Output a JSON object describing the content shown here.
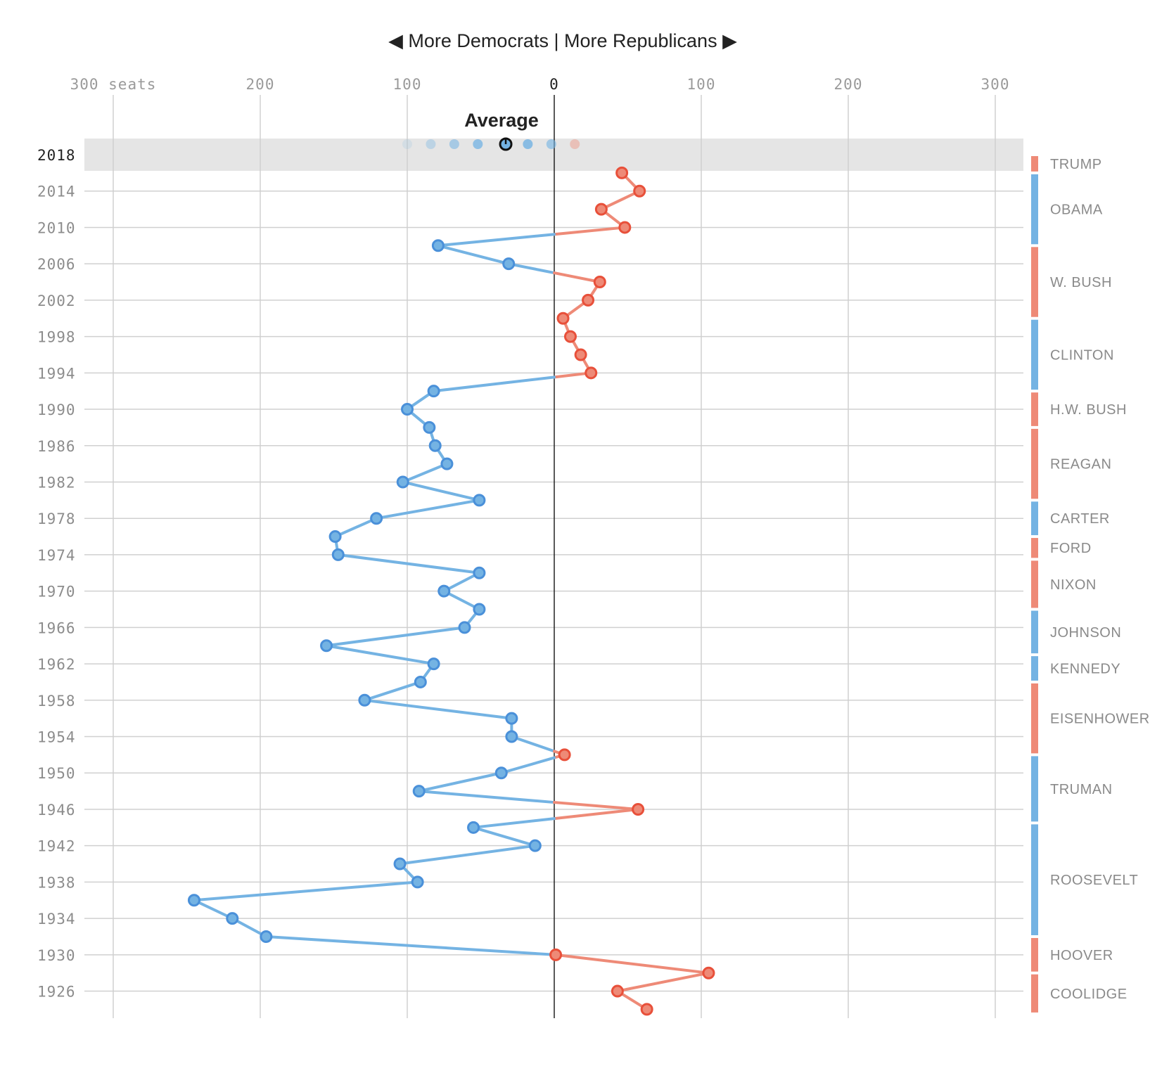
{
  "chart_data": {
    "type": "line",
    "header": "◀ More Democrats | More Republicans ▶",
    "x_axis": {
      "range": [
        -300,
        300
      ],
      "ticks": [
        {
          "value": -300,
          "label": "300 seats"
        },
        {
          "value": -200,
          "label": "200"
        },
        {
          "value": -100,
          "label": "100"
        },
        {
          "value": 0,
          "label": "0"
        },
        {
          "value": 100,
          "label": "100"
        },
        {
          "value": 200,
          "label": "200"
        },
        {
          "value": 300,
          "label": "300"
        }
      ]
    },
    "y_axis": {
      "labels": [
        "2018",
        "2014",
        "2010",
        "2006",
        "2002",
        "1998",
        "1994",
        "1990",
        "1986",
        "1982",
        "1978",
        "1974",
        "1970",
        "1966",
        "1962",
        "1958",
        "1954",
        "1950",
        "1946",
        "1942",
        "1938",
        "1934",
        "1930",
        "1926"
      ]
    },
    "highlight_year": "2018",
    "average_label": "Average",
    "average_value": -33,
    "forecast_dots": [
      -100,
      -84,
      -68,
      -52,
      -33,
      -18,
      -2,
      14
    ],
    "colors": {
      "democrat": "#74b3e3",
      "democrat_dot": "#4a90d9",
      "republican": "#ee8a77",
      "republican_dot": "#e8503a",
      "band": "#e5e5e5"
    },
    "series": [
      {
        "year": 2016,
        "value": 46
      },
      {
        "year": 2014,
        "value": 58
      },
      {
        "year": 2012,
        "value": 32
      },
      {
        "year": 2010,
        "value": 48
      },
      {
        "year": 2008,
        "value": -79
      },
      {
        "year": 2006,
        "value": -31
      },
      {
        "year": 2004,
        "value": 31
      },
      {
        "year": 2002,
        "value": 23
      },
      {
        "year": 2000,
        "value": 6
      },
      {
        "year": 1998,
        "value": 11
      },
      {
        "year": 1996,
        "value": 18
      },
      {
        "year": 1994,
        "value": 25
      },
      {
        "year": 1992,
        "value": -82
      },
      {
        "year": 1990,
        "value": -100
      },
      {
        "year": 1988,
        "value": -85
      },
      {
        "year": 1986,
        "value": -81
      },
      {
        "year": 1984,
        "value": -73
      },
      {
        "year": 1982,
        "value": -103
      },
      {
        "year": 1980,
        "value": -51
      },
      {
        "year": 1978,
        "value": -121
      },
      {
        "year": 1976,
        "value": -149
      },
      {
        "year": 1974,
        "value": -147
      },
      {
        "year": 1972,
        "value": -51
      },
      {
        "year": 1970,
        "value": -75
      },
      {
        "year": 1968,
        "value": -51
      },
      {
        "year": 1966,
        "value": -61
      },
      {
        "year": 1964,
        "value": -155
      },
      {
        "year": 1962,
        "value": -82
      },
      {
        "year": 1960,
        "value": -91
      },
      {
        "year": 1958,
        "value": -129
      },
      {
        "year": 1956,
        "value": -29
      },
      {
        "year": 1954,
        "value": -29
      },
      {
        "year": 1952,
        "value": 7
      },
      {
        "year": 1950,
        "value": -36
      },
      {
        "year": 1948,
        "value": -92
      },
      {
        "year": 1946,
        "value": 57
      },
      {
        "year": 1944,
        "value": -55
      },
      {
        "year": 1942,
        "value": -13
      },
      {
        "year": 1940,
        "value": -105
      },
      {
        "year": 1938,
        "value": -93
      },
      {
        "year": 1936,
        "value": -245
      },
      {
        "year": 1934,
        "value": -219
      },
      {
        "year": 1932,
        "value": -196
      },
      {
        "year": 1930,
        "value": 1
      },
      {
        "year": 1928,
        "value": 105
      },
      {
        "year": 1926,
        "value": 43
      },
      {
        "year": 1924,
        "value": 63
      }
    ],
    "presidents": [
      {
        "name": "TRUMP",
        "party": "R",
        "from": 2018,
        "to": 2016
      },
      {
        "name": "OBAMA",
        "party": "D",
        "from": 2016,
        "to": 2008
      },
      {
        "name": "W. BUSH",
        "party": "R",
        "from": 2008,
        "to": 2000
      },
      {
        "name": "CLINTON",
        "party": "D",
        "from": 2000,
        "to": 1992
      },
      {
        "name": "H.W. BUSH",
        "party": "R",
        "from": 1992,
        "to": 1988
      },
      {
        "name": "REAGAN",
        "party": "R",
        "from": 1988,
        "to": 1980
      },
      {
        "name": "CARTER",
        "party": "D",
        "from": 1980,
        "to": 1976
      },
      {
        "name": "FORD",
        "party": "R",
        "from": 1976,
        "to": 1973.5
      },
      {
        "name": "NIXON",
        "party": "R",
        "from": 1973.5,
        "to": 1968
      },
      {
        "name": "JOHNSON",
        "party": "D",
        "from": 1968,
        "to": 1963
      },
      {
        "name": "KENNEDY",
        "party": "D",
        "from": 1963,
        "to": 1960
      },
      {
        "name": "EISENHOWER",
        "party": "R",
        "from": 1960,
        "to": 1952
      },
      {
        "name": "TRUMAN",
        "party": "D",
        "from": 1952,
        "to": 1944.5
      },
      {
        "name": "ROOSEVELT",
        "party": "D",
        "from": 1944.5,
        "to": 1932
      },
      {
        "name": "HOOVER",
        "party": "R",
        "from": 1932,
        "to": 1928
      },
      {
        "name": "COOLIDGE",
        "party": "R",
        "from": 1928,
        "to": 1923.5
      }
    ]
  }
}
